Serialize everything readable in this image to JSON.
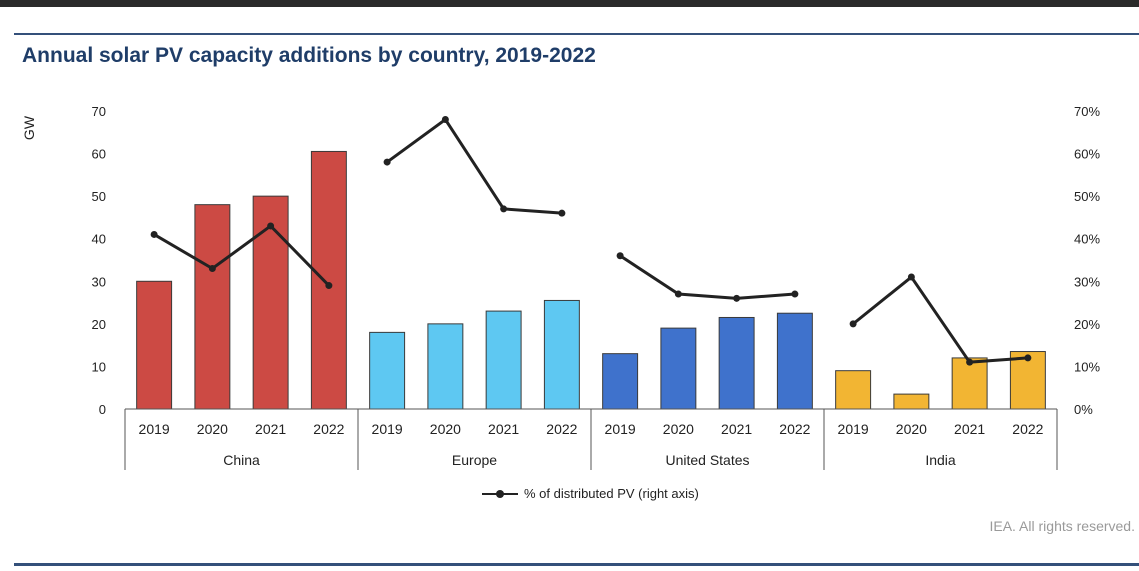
{
  "chart_data": {
    "type": "bar",
    "title": "Annual solar PV capacity additions by country, 2019-2022",
    "ylabel": "GW",
    "ylim": [
      0,
      70
    ],
    "y_ticks": [
      "0",
      "10",
      "20",
      "30",
      "40",
      "50",
      "60",
      "70"
    ],
    "y2lim": [
      0,
      0.7
    ],
    "y2_ticks": [
      "0%",
      "10%",
      "20%",
      "30%",
      "40%",
      "50%",
      "60%",
      "70%"
    ],
    "categories": [
      "2019",
      "2020",
      "2021",
      "2022"
    ],
    "groups": [
      {
        "name": "China",
        "color": "#cc4a44",
        "values": [
          30,
          48,
          50,
          60.5
        ],
        "distributed_share": [
          0.41,
          0.33,
          0.43,
          0.29
        ]
      },
      {
        "name": "Europe",
        "color": "#5ec8f2",
        "values": [
          18,
          20,
          23,
          25.5
        ],
        "distributed_share": [
          0.58,
          0.68,
          0.47,
          0.46
        ]
      },
      {
        "name": "United States",
        "color": "#3f72cc",
        "values": [
          13,
          19,
          21.5,
          22.5
        ],
        "distributed_share": [
          0.36,
          0.27,
          0.26,
          0.27
        ]
      },
      {
        "name": "India",
        "color": "#f2b533",
        "values": [
          9,
          3.5,
          12,
          13.5
        ],
        "distributed_share": [
          0.2,
          0.31,
          0.11,
          0.12
        ]
      }
    ],
    "line_series": {
      "name": "% of distributed PV (right axis)",
      "color": "#222222"
    },
    "grid": false,
    "legend": "bottom"
  },
  "source": "IEA. All rights reserved."
}
